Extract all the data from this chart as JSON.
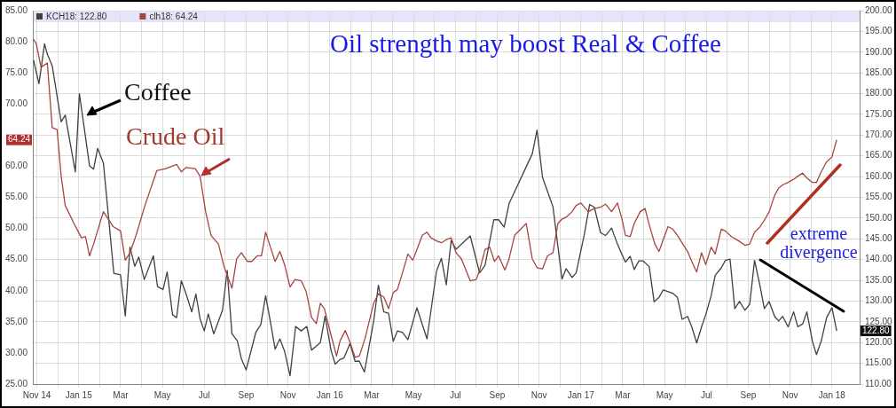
{
  "chart_data": {
    "type": "line",
    "title": "Oil strength may boost Real & Coffee",
    "annotations": [
      "Coffee",
      "Crude Oil",
      "extreme divergence",
      "64.24",
      "122.80"
    ],
    "legend": "top left",
    "grid": true,
    "marker": "none",
    "line_style": "solid",
    "xlim": [
      "2014-10-26",
      "2018-02-10"
    ],
    "xticks": [
      {
        "value": "2014-11",
        "label": "Nov 14"
      },
      {
        "value": "2014-12",
        "label": null
      },
      {
        "value": "2015-01",
        "label": "Jan 15"
      },
      {
        "value": "2015-02",
        "label": null
      },
      {
        "value": "2015-03",
        "label": "Mar"
      },
      {
        "value": "2015-04",
        "label": null
      },
      {
        "value": "2015-05",
        "label": "May"
      },
      {
        "value": "2015-06",
        "label": null
      },
      {
        "value": "2015-07",
        "label": "Jul"
      },
      {
        "value": "2015-08",
        "label": null
      },
      {
        "value": "2015-09",
        "label": "Sep"
      },
      {
        "value": "2015-10",
        "label": null
      },
      {
        "value": "2015-11",
        "label": "Nov"
      },
      {
        "value": "2015-12",
        "label": null
      },
      {
        "value": "2016-01",
        "label": "Jan 16"
      },
      {
        "value": "2016-02",
        "label": null
      },
      {
        "value": "2016-03",
        "label": "Mar"
      },
      {
        "value": "2016-04",
        "label": null
      },
      {
        "value": "2016-05",
        "label": "May"
      },
      {
        "value": "2016-06",
        "label": null
      },
      {
        "value": "2016-07",
        "label": "Jul"
      },
      {
        "value": "2016-08",
        "label": null
      },
      {
        "value": "2016-09",
        "label": "Sep"
      },
      {
        "value": "2016-10",
        "label": null
      },
      {
        "value": "2016-11",
        "label": "Nov"
      },
      {
        "value": "2016-12",
        "label": null
      },
      {
        "value": "2017-01",
        "label": "Jan 17"
      },
      {
        "value": "2017-02",
        "label": null
      },
      {
        "value": "2017-03",
        "label": "Mar"
      },
      {
        "value": "2017-04",
        "label": null
      },
      {
        "value": "2017-05",
        "label": "May"
      },
      {
        "value": "2017-06",
        "label": null
      },
      {
        "value": "2017-07",
        "label": "Jul"
      },
      {
        "value": "2017-08",
        "label": null
      },
      {
        "value": "2017-09",
        "label": "Sep"
      },
      {
        "value": "2017-10",
        "label": null
      },
      {
        "value": "2017-11",
        "label": "Nov"
      },
      {
        "value": "2017-12",
        "label": null
      },
      {
        "value": "2018-01",
        "label": "Jan 18"
      }
    ],
    "ylim": [
      25,
      85
    ],
    "yticks": [
      {
        "value": 25,
        "label": "25.00"
      },
      {
        "value": 30,
        "label": "30.00"
      },
      {
        "value": 35,
        "label": "35.00"
      },
      {
        "value": 40,
        "label": "40.00"
      },
      {
        "value": 45,
        "label": "45.00"
      },
      {
        "value": 50,
        "label": "50.00"
      },
      {
        "value": 55,
        "label": "55.00"
      },
      {
        "value": 60,
        "label": "60.00"
      },
      {
        "value": 65,
        "label": null
      },
      {
        "value": 70,
        "label": "70.00"
      },
      {
        "value": 75,
        "label": "75.00"
      },
      {
        "value": 80,
        "label": "80.00"
      },
      {
        "value": 85,
        "label": "85.00"
      }
    ],
    "y2lim": [
      110,
      200
    ],
    "y2ticks": [
      {
        "value": 110,
        "label": "110.00"
      },
      {
        "value": 115,
        "label": "115.00"
      },
      {
        "value": 120,
        "label": "120.00"
      },
      {
        "value": 125,
        "label": "125.00"
      },
      {
        "value": 130,
        "label": "130.00"
      },
      {
        "value": 135,
        "label": "135.00"
      },
      {
        "value": 140,
        "label": "140.00"
      },
      {
        "value": 145,
        "label": "145.00"
      },
      {
        "value": 150,
        "label": "150.00"
      },
      {
        "value": 155,
        "label": "155.00"
      },
      {
        "value": 160,
        "label": "160.00"
      },
      {
        "value": 165,
        "label": "165.00"
      },
      {
        "value": 170,
        "label": "170.00"
      },
      {
        "value": 175,
        "label": "175.00"
      },
      {
        "value": 180,
        "label": "180.00"
      },
      {
        "value": 185,
        "label": "185.00"
      },
      {
        "value": 190,
        "label": "190.00"
      },
      {
        "value": 195,
        "label": "195.00"
      },
      {
        "value": 200,
        "label": "200.00"
      }
    ],
    "series": [
      {
        "name": "KCH18: 122.80",
        "color": "#404040",
        "axis": "y2",
        "x": [
          "2014-10-27",
          "2014-11-04",
          "2014-11-12",
          "2014-11-16",
          "2014-11-23",
          "2014-12-06",
          "2014-12-12",
          "2014-12-27",
          "2015-01-02",
          "2015-01-17",
          "2015-01-23",
          "2015-01-29",
          "2015-02-06",
          "2015-02-20",
          "2015-03-01",
          "2015-03-08",
          "2015-03-15",
          "2015-03-22",
          "2015-03-28",
          "2015-04-05",
          "2015-04-18",
          "2015-04-24",
          "2015-05-02",
          "2015-05-08",
          "2015-05-16",
          "2015-05-22",
          "2015-05-29",
          "2015-06-05",
          "2015-06-13",
          "2015-06-19",
          "2015-06-25",
          "2015-07-01",
          "2015-07-07",
          "2015-07-15",
          "2015-07-28",
          "2015-08-04",
          "2015-08-11",
          "2015-08-19",
          "2015-08-25",
          "2015-09-01",
          "2015-09-15",
          "2015-09-22",
          "2015-09-29",
          "2015-10-06",
          "2015-10-13",
          "2015-10-20",
          "2015-10-27",
          "2015-11-04",
          "2015-11-12",
          "2015-11-20",
          "2015-11-28",
          "2015-12-05",
          "2015-12-18",
          "2015-12-25",
          "2016-01-03",
          "2016-01-09",
          "2016-01-16",
          "2016-01-22",
          "2016-01-31",
          "2016-02-07",
          "2016-02-13",
          "2016-02-20",
          "2016-03-04",
          "2016-03-11",
          "2016-03-19",
          "2016-03-26",
          "2016-04-02",
          "2016-04-08",
          "2016-04-15",
          "2016-04-23",
          "2016-05-06",
          "2016-05-21",
          "2016-06-04",
          "2016-06-11",
          "2016-06-18",
          "2016-06-25",
          "2016-07-02",
          "2016-07-23",
          "2016-08-06",
          "2016-08-14",
          "2016-08-27",
          "2016-09-03",
          "2016-09-11",
          "2016-09-18",
          "2016-10-22",
          "2016-10-29",
          "2016-11-06",
          "2016-11-21",
          "2016-12-04",
          "2016-12-10",
          "2016-12-19",
          "2016-12-25",
          "2017-01-06",
          "2017-01-14",
          "2017-01-21",
          "2017-01-30",
          "2017-02-06",
          "2017-02-14",
          "2017-02-22",
          "2017-02-28",
          "2017-03-05",
          "2017-03-12",
          "2017-03-18",
          "2017-03-25",
          "2017-03-31",
          "2017-04-09",
          "2017-04-16",
          "2017-04-23",
          "2017-04-29",
          "2017-05-13",
          "2017-05-20",
          "2017-05-27",
          "2017-06-04",
          "2017-06-10",
          "2017-06-17",
          "2017-06-24",
          "2017-06-30",
          "2017-07-08",
          "2017-07-14",
          "2017-07-23",
          "2017-07-29",
          "2017-08-05",
          "2017-08-12",
          "2017-08-19",
          "2017-08-27",
          "2017-09-03",
          "2017-09-10",
          "2017-09-18",
          "2017-09-24",
          "2017-10-01",
          "2017-10-09",
          "2017-10-15",
          "2017-10-21",
          "2017-10-29",
          "2017-11-06",
          "2017-11-12",
          "2017-11-19",
          "2017-11-25",
          "2017-12-03",
          "2017-12-09",
          "2017-12-16",
          "2017-12-24",
          "2018-01-01",
          "2018-01-08"
        ],
        "values": [
          188.1,
          182.4,
          192.0,
          189.5,
          186.7,
          173.2,
          174.8,
          161.1,
          180.0,
          162.6,
          161.8,
          166.8,
          163.3,
          136.7,
          136.3,
          126.4,
          143.0,
          138.4,
          140.6,
          135.2,
          140.9,
          133.5,
          132.8,
          137.0,
          126.7,
          126.0,
          134.9,
          131.7,
          127.4,
          131.7,
          125.7,
          122.8,
          126.9,
          122.1,
          127.8,
          137.4,
          122.1,
          120.4,
          116.1,
          113.4,
          122.5,
          124.3,
          131.3,
          125.0,
          118.4,
          120.9,
          117.9,
          112.0,
          123.9,
          122.8,
          123.9,
          118.2,
          120.0,
          126.4,
          118.0,
          114.8,
          115.9,
          116.3,
          119.8,
          115.5,
          115.5,
          112.9,
          125.2,
          133.8,
          127.4,
          127.1,
          120.3,
          122.8,
          122.5,
          120.7,
          128.4,
          120.9,
          137.2,
          140.3,
          133.9,
          144.6,
          142.5,
          145.7,
          136.8,
          138.6,
          149.6,
          149.6,
          147.8,
          153.5,
          165.5,
          171.2,
          159.8,
          152.7,
          135.3,
          137.8,
          135.7,
          136.8,
          146.0,
          153.3,
          152.6,
          146.5,
          145.8,
          147.6,
          143.7,
          141.2,
          139.4,
          140.8,
          137.6,
          139.7,
          139.7,
          138.3,
          129.8,
          130.9,
          132.7,
          131.9,
          130.9,
          125.6,
          126.3,
          123.8,
          119.9,
          123.8,
          126.7,
          131.3,
          136.2,
          138.0,
          139.8,
          140.1,
          128.2,
          129.9,
          127.8,
          129.2,
          139.8,
          133.5,
          128.2,
          129.9,
          126.3,
          125.2,
          126.3,
          123.8,
          127.4,
          123.8,
          124.5,
          127.4,
          120.3,
          117.1,
          120.3,
          126.0,
          128.4,
          122.8
        ]
      },
      {
        "name": "clh18: 64.24",
        "color": "#a5453f",
        "x": [
          "2014-10-27",
          "2014-10-31",
          "2014-11-07",
          "2014-11-16",
          "2014-11-23",
          "2014-11-30",
          "2014-12-06",
          "2014-12-12",
          "2014-12-25",
          "2015-01-05",
          "2015-01-11",
          "2015-01-17",
          "2015-01-23",
          "2015-02-06",
          "2015-02-19",
          "2015-03-01",
          "2015-03-08",
          "2015-03-15",
          "2015-03-24",
          "2015-04-06",
          "2015-04-23",
          "2015-05-06",
          "2015-05-22",
          "2015-05-29",
          "2015-06-05",
          "2015-06-18",
          "2015-06-25",
          "2015-07-03",
          "2015-07-11",
          "2015-07-22",
          "2015-07-30",
          "2015-08-04",
          "2015-08-11",
          "2015-08-18",
          "2015-08-25",
          "2015-09-03",
          "2015-09-09",
          "2015-09-17",
          "2015-09-23",
          "2015-09-29",
          "2015-10-06",
          "2015-10-13",
          "2015-10-20",
          "2015-10-27",
          "2015-11-04",
          "2015-11-11",
          "2015-11-20",
          "2015-11-27",
          "2015-12-05",
          "2015-12-12",
          "2015-12-18",
          "2015-12-24",
          "2016-01-03",
          "2016-01-11",
          "2016-01-16",
          "2016-01-24",
          "2016-01-31",
          "2016-02-07",
          "2016-02-13",
          "2016-02-21",
          "2016-03-04",
          "2016-03-11",
          "2016-03-19",
          "2016-03-26",
          "2016-04-02",
          "2016-04-08",
          "2016-04-15",
          "2016-04-23",
          "2016-04-30",
          "2016-05-06",
          "2016-05-14",
          "2016-05-21",
          "2016-05-27",
          "2016-06-04",
          "2016-06-11",
          "2016-06-18",
          "2016-06-25",
          "2016-07-02",
          "2016-07-10",
          "2016-07-23",
          "2016-08-01",
          "2016-08-06",
          "2016-08-14",
          "2016-08-21",
          "2016-08-28",
          "2016-09-03",
          "2016-09-12",
          "2016-09-18",
          "2016-09-26",
          "2016-10-13",
          "2016-10-22",
          "2016-10-29",
          "2016-11-06",
          "2016-11-13",
          "2016-11-21",
          "2016-11-28",
          "2016-12-04",
          "2016-12-10",
          "2016-12-19",
          "2016-12-25",
          "2017-01-01",
          "2017-01-12",
          "2017-01-21",
          "2017-01-30",
          "2017-02-06",
          "2017-02-14",
          "2017-02-22",
          "2017-02-28",
          "2017-03-05",
          "2017-03-12",
          "2017-03-18",
          "2017-03-27",
          "2017-04-03",
          "2017-04-09",
          "2017-04-17",
          "2017-04-23",
          "2017-04-29",
          "2017-05-06",
          "2017-05-13",
          "2017-05-20",
          "2017-05-28",
          "2017-06-04",
          "2017-06-10",
          "2017-06-17",
          "2017-06-24",
          "2017-06-30",
          "2017-07-08",
          "2017-07-14",
          "2017-07-23",
          "2017-07-29",
          "2017-08-07",
          "2017-08-18",
          "2017-08-27",
          "2017-09-03",
          "2017-09-10",
          "2017-09-18",
          "2017-09-24",
          "2017-10-01",
          "2017-10-09",
          "2017-10-15",
          "2017-10-21",
          "2017-10-29",
          "2017-11-06",
          "2017-11-12",
          "2017-11-19",
          "2017-11-25",
          "2017-12-03",
          "2017-12-09",
          "2017-12-16",
          "2017-12-24",
          "2018-01-01",
          "2018-01-08"
        ],
        "values": [
          80.4,
          79.7,
          75.9,
          76.6,
          66.2,
          65.9,
          58.4,
          53.7,
          50.8,
          48.5,
          48.7,
          45.6,
          47.5,
          52.7,
          50.3,
          49.6,
          44.9,
          46.1,
          48.9,
          53.7,
          59.3,
          59.6,
          60.3,
          59.1,
          59.8,
          59.6,
          58.4,
          52.7,
          48.9,
          47.5,
          44.0,
          42.5,
          40.4,
          45.1,
          46.1,
          44.7,
          44.7,
          45.6,
          45.6,
          49.4,
          47.0,
          44.7,
          46.3,
          44.2,
          40.6,
          41.8,
          41.6,
          39.9,
          35.7,
          34.7,
          38.0,
          37.1,
          32.8,
          29.5,
          31.9,
          33.6,
          31.7,
          29.3,
          29.5,
          32.4,
          38.0,
          39.5,
          39.0,
          37.1,
          39.7,
          40.2,
          42.8,
          45.9,
          44.9,
          46.6,
          48.9,
          49.4,
          48.5,
          48.0,
          47.7,
          48.2,
          48.5,
          46.1,
          45.1,
          41.6,
          41.8,
          43.3,
          46.6,
          47.0,
          44.7,
          45.6,
          43.3,
          45.1,
          48.9,
          50.8,
          45.1,
          43.7,
          43.5,
          45.6,
          46.1,
          50.8,
          51.5,
          51.8,
          52.7,
          53.7,
          54.1,
          52.7,
          53.2,
          53.4,
          53.9,
          52.7,
          54.1,
          51.5,
          48.9,
          48.7,
          50.8,
          52.7,
          53.2,
          50.6,
          47.5,
          46.3,
          48.2,
          50.3,
          49.9,
          48.9,
          47.5,
          46.3,
          44.7,
          43.0,
          46.1,
          44.2,
          47.0,
          45.9,
          49.9,
          49.6,
          48.7,
          48.0,
          47.3,
          47.5,
          49.4,
          50.3,
          51.3,
          52.7,
          55.3,
          56.5,
          57.0,
          57.4,
          57.9,
          58.4,
          58.9,
          58.1,
          57.4,
          57.4,
          59.1,
          60.7,
          61.5,
          64.24
        ]
      }
    ]
  }
}
